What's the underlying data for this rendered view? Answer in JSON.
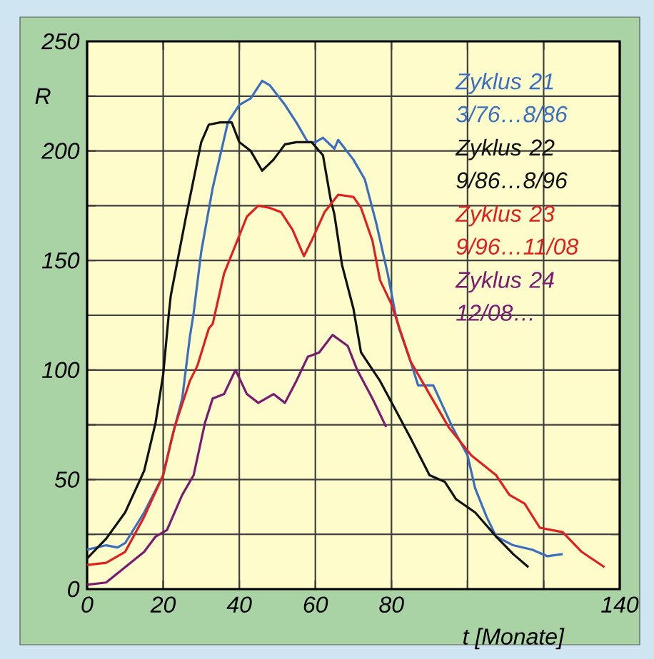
{
  "chart_data": {
    "type": "line",
    "xlabel": "t [Monate]",
    "ylabel": "R",
    "xlim": [
      0,
      140
    ],
    "ylim": [
      0,
      250
    ],
    "xticks": [
      0,
      20,
      40,
      60,
      80,
      {
        "value": 100,
        "label": null
      },
      {
        "value": 120,
        "label": null
      },
      140
    ],
    "yticks": [
      0,
      {
        "value": 25,
        "label": null
      },
      50,
      {
        "value": 75,
        "label": null
      },
      100,
      {
        "value": 125,
        "label": null
      },
      150,
      {
        "value": 175,
        "label": null
      },
      200,
      {
        "value": 225,
        "label": null
      },
      250
    ],
    "grid": true,
    "legend": "top right",
    "marker": "none",
    "line_style": "solid",
    "series": [
      {
        "name": "Zyklus 21 3/76…8/86",
        "color": "#3a6fc0",
        "x": [
          0,
          5,
          8,
          10,
          15,
          20,
          22,
          25,
          27,
          28,
          30,
          33,
          35,
          37,
          40,
          43,
          46,
          48,
          52,
          55,
          58,
          60,
          62,
          65,
          66,
          70,
          73,
          76,
          79,
          81,
          82,
          85,
          87,
          91,
          96,
          100,
          102,
          105,
          107.5,
          112,
          117,
          121,
          125
        ],
        "values": [
          18,
          20,
          19,
          21,
          35,
          52,
          67,
          87,
          115,
          126,
          154,
          183,
          198,
          213,
          221,
          224,
          232,
          230,
          221,
          213,
          204,
          204,
          206,
          201,
          205,
          196,
          187,
          167,
          144,
          126,
          119,
          104,
          93,
          93,
          74,
          61,
          46,
          33,
          24,
          20,
          18,
          15,
          16
        ]
      },
      {
        "name": "Zyklus 22 9/86…8/96",
        "color": "#111111",
        "x": [
          0,
          5,
          10,
          15,
          18,
          20,
          21.5,
          22,
          24,
          26,
          28,
          30,
          32,
          35,
          38,
          40,
          43,
          46,
          49,
          52,
          55,
          59,
          62,
          64,
          65,
          67,
          70,
          72,
          77,
          81,
          85,
          90,
          94,
          97,
          102,
          107.5,
          112,
          116
        ],
        "values": [
          14,
          23,
          35,
          54,
          76,
          98,
          126,
          134,
          152,
          170,
          187,
          204,
          212,
          213,
          213,
          204,
          200,
          191,
          196,
          203,
          204,
          204,
          198,
          178,
          171,
          148,
          128,
          108,
          95,
          82,
          69,
          52,
          49,
          41,
          35,
          24,
          16,
          10
        ]
      },
      {
        "name": "Zyklus 23 9/96…11/08",
        "color": "#e02020",
        "x": [
          0,
          5,
          10,
          15,
          20,
          23,
          27,
          29,
          32,
          33,
          36,
          39,
          42,
          45,
          48,
          51,
          54,
          57,
          59,
          62.4,
          66,
          70,
          72,
          75,
          77,
          80,
          85,
          90,
          95,
          101,
          107.5,
          111,
          115,
          119,
          125,
          130,
          136
        ],
        "values": [
          11,
          12,
          17,
          33,
          52,
          74,
          95,
          102,
          119,
          121,
          144,
          157,
          170,
          175,
          174,
          172,
          164,
          152,
          159,
          172,
          180,
          179,
          174,
          159,
          141,
          130,
          104,
          89,
          74,
          61,
          52,
          43,
          39,
          28,
          26,
          17,
          10
        ]
      },
      {
        "name": "Zyklus 24 12/08…",
        "color": "#7a1a70",
        "x": [
          0,
          5,
          10,
          15,
          18,
          21,
          25,
          28,
          31,
          33,
          36,
          39,
          42,
          45,
          49,
          52,
          55,
          58,
          61,
          64.5,
          68.5,
          71,
          75,
          78.6
        ],
        "values": [
          2,
          3,
          10,
          17,
          24,
          27,
          43,
          52,
          76,
          87,
          89,
          100,
          89,
          85,
          89,
          85,
          95,
          106,
          108,
          116,
          111,
          100,
          87,
          74
        ]
      }
    ]
  }
}
